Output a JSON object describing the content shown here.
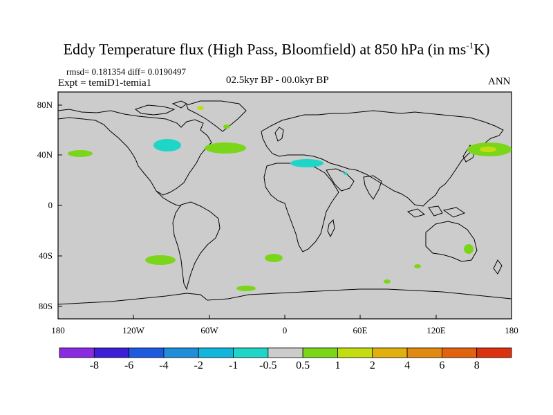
{
  "title_main": "Eddy Temperature flux (High Pass, Bloomfield) at 850 hPa (in ms",
  "title_sup": "-1",
  "title_end": "K)",
  "stats": "rmsd= 0.181354 diff= 0.0190497",
  "experiment": "Expt = temiD1-temia1",
  "period": "02.5kyr BP - 00.0kyr BP",
  "season": "ANN",
  "lat_labels": [
    "80N",
    "40N",
    "0",
    "40S",
    "80S"
  ],
  "lon_labels": [
    "180",
    "120W",
    "60W",
    "0",
    "60E",
    "120E",
    "180"
  ],
  "colorbar": {
    "labels": [
      "-8",
      "-6",
      "-4",
      "-2",
      "-1",
      "-0.5",
      "0.5",
      "1",
      "2",
      "4",
      "6",
      "8"
    ],
    "colors": [
      "#8a2be2",
      "#3a1fd6",
      "#1e5ae0",
      "#1e8ed8",
      "#12b6dc",
      "#1ed6c8",
      "#cccccc",
      "#7bd61a",
      "#c4dd10",
      "#e2b00e",
      "#e28a10",
      "#e2620e",
      "#dd3210"
    ]
  },
  "colors": {
    "land_bg": "#cccccc",
    "coast": "#000000",
    "green": "#7bd61a",
    "cyan": "#1ed6c8",
    "yellow": "#c4dd10"
  }
}
